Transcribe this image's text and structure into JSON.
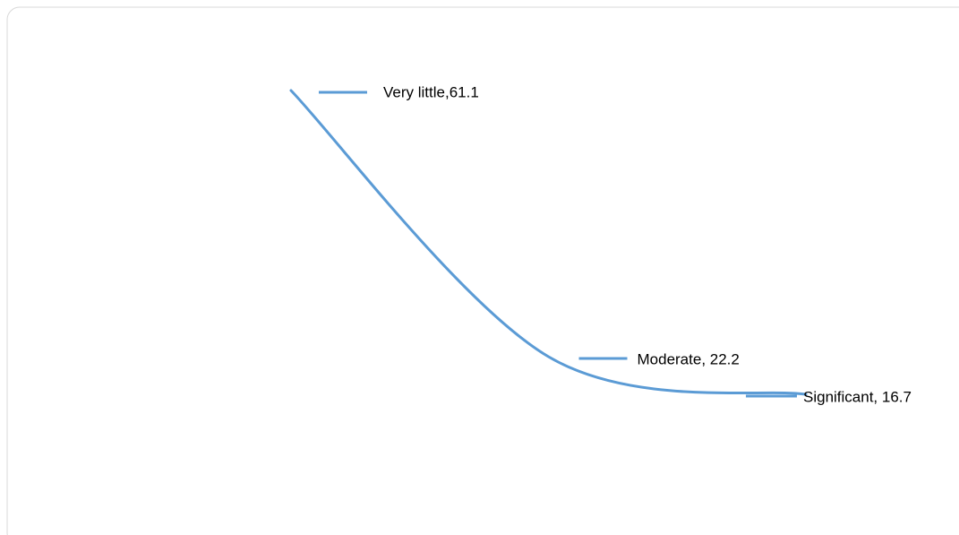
{
  "chart_data": {
    "type": "line",
    "values": [
      61.1,
      22.2,
      16.7
    ],
    "value_labels": [
      "Very little,61.1",
      "Moderate, 22.2",
      "Significant, 16.7"
    ],
    "color": "#5b9bd5",
    "smooth": true
  }
}
